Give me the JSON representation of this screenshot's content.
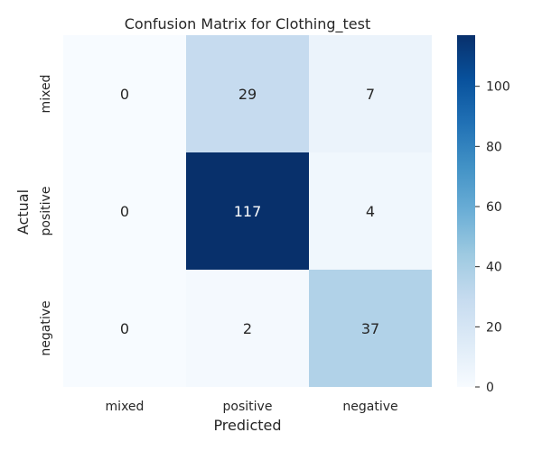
{
  "chart_data": {
    "type": "heatmap",
    "title": "Confusion Matrix for Clothing_test",
    "xlabel": "Predicted",
    "ylabel": "Actual",
    "x_categories": [
      "mixed",
      "positive",
      "negative"
    ],
    "y_categories": [
      "mixed",
      "positive",
      "negative"
    ],
    "matrix": [
      [
        0,
        29,
        7
      ],
      [
        0,
        117,
        4
      ],
      [
        0,
        2,
        37
      ]
    ],
    "colormap": "Blues",
    "colorbar": {
      "range": [
        0,
        117
      ],
      "ticks": [
        0,
        20,
        40,
        60,
        80,
        100
      ]
    },
    "grid": false
  }
}
